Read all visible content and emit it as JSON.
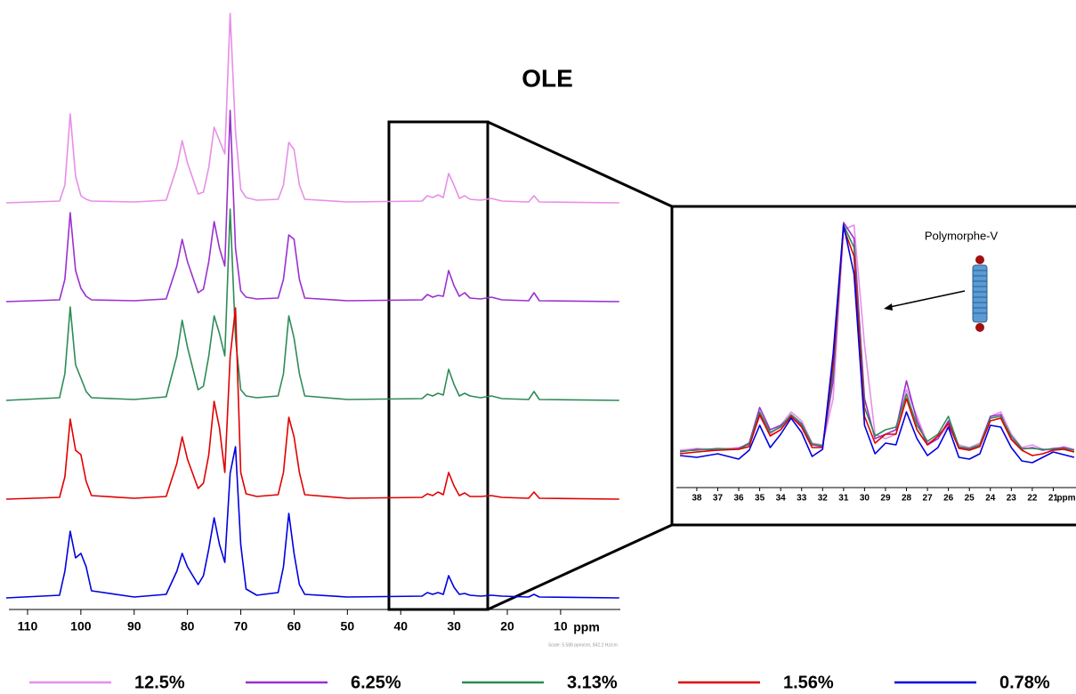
{
  "chart_data": [
    {
      "type": "line",
      "title": "OLE",
      "xlabel": "ppm",
      "scale_note": "Scale: 5.588 ppm/cm, 842.2 Hz/cm",
      "xlim": [
        113.5,
        -1.2
      ],
      "xticks": [
        110,
        100,
        90,
        80,
        70,
        60,
        50,
        40,
        30,
        20,
        10
      ],
      "x": [
        114,
        104,
        103,
        102,
        101,
        100,
        99,
        98,
        90,
        84,
        82,
        81,
        80,
        78,
        77,
        76,
        75,
        74,
        73,
        72,
        71,
        70,
        69,
        67,
        63,
        62,
        61,
        60,
        59,
        58,
        50,
        36,
        35,
        34,
        33,
        32,
        31,
        30,
        29,
        28,
        27,
        25,
        23,
        21,
        16,
        15,
        14,
        -1
      ],
      "series": [
        {
          "name": "12.5%",
          "color": "#e88ee8",
          "values": [
            0,
            2,
            20,
            100,
            30,
            8,
            4,
            2,
            1,
            3,
            40,
            70,
            45,
            10,
            12,
            40,
            85,
            70,
            55,
            213,
            80,
            15,
            6,
            3,
            4,
            20,
            68,
            60,
            20,
            4,
            1,
            2,
            8,
            6,
            9,
            6,
            33,
            20,
            5,
            8,
            4,
            3,
            5,
            2,
            1,
            8,
            1,
            0
          ]
        },
        {
          "name": "6.25%",
          "color": "#9b30d0",
          "values": [
            0,
            2,
            25,
            100,
            35,
            15,
            6,
            2,
            1,
            3,
            40,
            70,
            45,
            10,
            14,
            45,
            90,
            60,
            40,
            215,
            60,
            12,
            5,
            3,
            4,
            25,
            75,
            70,
            25,
            4,
            1,
            2,
            8,
            5,
            7,
            6,
            35,
            18,
            6,
            10,
            4,
            3,
            5,
            2,
            1,
            10,
            1,
            0
          ]
        },
        {
          "name": "3.13%",
          "color": "#2e8b57",
          "values": [
            0,
            3,
            30,
            105,
            40,
            25,
            10,
            3,
            1,
            4,
            50,
            90,
            60,
            12,
            16,
            50,
            95,
            75,
            50,
            215,
            70,
            12,
            5,
            3,
            5,
            30,
            95,
            70,
            30,
            5,
            1,
            2,
            7,
            5,
            8,
            6,
            35,
            18,
            5,
            8,
            5,
            3,
            5,
            2,
            1,
            10,
            1,
            0
          ]
        },
        {
          "name": "1.56%",
          "color": "#e00000",
          "values": [
            0,
            2,
            25,
            90,
            55,
            50,
            20,
            4,
            1,
            3,
            40,
            70,
            45,
            12,
            18,
            50,
            110,
            80,
            30,
            160,
            215,
            30,
            6,
            3,
            5,
            30,
            92,
            70,
            30,
            5,
            1,
            2,
            6,
            4,
            8,
            5,
            30,
            15,
            4,
            7,
            3,
            3,
            4,
            2,
            1,
            8,
            1,
            0
          ]
        },
        {
          "name": "0.78%",
          "color": "#0000e0",
          "values": [
            0,
            3,
            30,
            75,
            45,
            50,
            35,
            8,
            1,
            4,
            30,
            50,
            35,
            15,
            25,
            55,
            90,
            60,
            40,
            140,
            170,
            60,
            10,
            3,
            6,
            35,
            95,
            50,
            15,
            4,
            1,
            2,
            6,
            4,
            6,
            4,
            25,
            12,
            4,
            5,
            3,
            2,
            3,
            2,
            1,
            4,
            1,
            0
          ]
        }
      ]
    },
    {
      "type": "line",
      "annotation": "Polymorphe-V",
      "xlabel": "ppm",
      "xlim": [
        39.1,
        20.0
      ],
      "xticks": [
        38,
        37,
        36,
        35,
        34,
        33,
        32,
        31,
        30,
        29,
        28,
        27,
        26,
        25,
        24,
        23,
        22,
        21
      ],
      "x": [
        38.8,
        38,
        37,
        36,
        35.5,
        35,
        34.5,
        34,
        33.5,
        33,
        32.5,
        32,
        31.5,
        31,
        30.5,
        30,
        29.5,
        29,
        28.5,
        28,
        27.5,
        27,
        26.5,
        26,
        25.5,
        25,
        24.5,
        24,
        23.5,
        23,
        22.5,
        22,
        21.5,
        21,
        20.5,
        20
      ],
      "series": [
        {
          "color": "#e88ee8",
          "values": [
            2,
            4,
            3,
            5,
            8,
            40,
            20,
            30,
            45,
            35,
            10,
            8,
            60,
            250,
            255,
            120,
            20,
            15,
            20,
            70,
            40,
            10,
            15,
            30,
            8,
            5,
            10,
            40,
            45,
            20,
            5,
            8,
            3,
            2,
            6,
            3
          ]
        },
        {
          "color": "#9b30d0",
          "values": [
            0,
            3,
            2,
            4,
            10,
            50,
            25,
            30,
            40,
            30,
            8,
            6,
            80,
            258,
            240,
            60,
            15,
            20,
            25,
            80,
            35,
            8,
            15,
            35,
            5,
            3,
            8,
            40,
            42,
            15,
            3,
            5,
            2,
            4,
            5,
            2
          ]
        },
        {
          "color": "#2e8b57",
          "values": [
            1,
            2,
            4,
            3,
            9,
            45,
            22,
            28,
            42,
            32,
            9,
            7,
            90,
            255,
            230,
            50,
            18,
            25,
            28,
            65,
            30,
            12,
            20,
            40,
            6,
            4,
            8,
            38,
            40,
            18,
            4,
            4,
            3,
            3,
            4,
            2
          ]
        },
        {
          "color": "#e00000",
          "values": [
            -2,
            0,
            2,
            3,
            6,
            42,
            18,
            25,
            40,
            28,
            5,
            5,
            100,
            252,
            220,
            40,
            10,
            20,
            20,
            60,
            25,
            8,
            18,
            32,
            4,
            2,
            6,
            35,
            38,
            14,
            2,
            -4,
            -2,
            2,
            3,
            0
          ]
        },
        {
          "color": "#0000e0",
          "values": [
            -4,
            -6,
            -2,
            -8,
            2,
            30,
            5,
            20,
            38,
            22,
            -5,
            3,
            110,
            255,
            200,
            30,
            -2,
            10,
            8,
            45,
            15,
            -4,
            5,
            28,
            -6,
            -8,
            -2,
            30,
            28,
            5,
            -10,
            -12,
            -6,
            0,
            -3,
            -6
          ]
        }
      ]
    }
  ]
}
